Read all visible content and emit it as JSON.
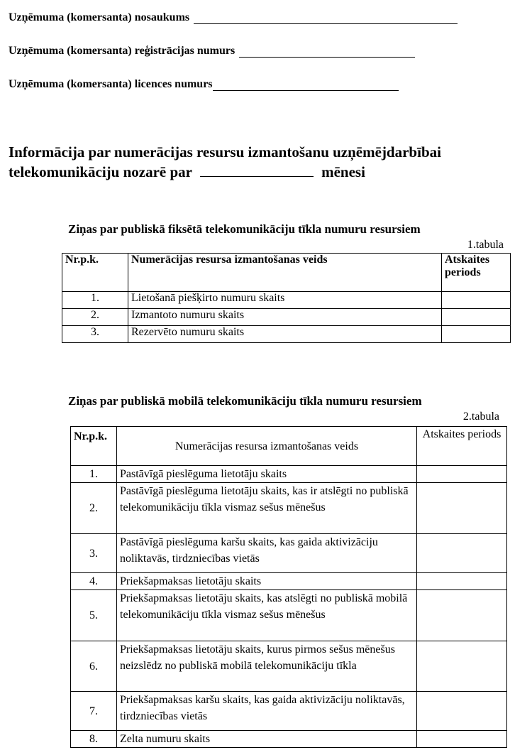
{
  "fields": [
    {
      "label": "Uzņēmuma (komersanta) nosaukums",
      "value": ""
    },
    {
      "label": "Uzņēmuma (komersanta) reģistrācijas numurs",
      "value": ""
    },
    {
      "label": "Uzņēmuma (komersanta) licences numurs",
      "value": ""
    }
  ],
  "heading": {
    "line1": "Informācija par numerācijas resursu izmantošanu uzņēmējdarbībai",
    "line2_before": "telekomunikāciju nozarē par",
    "month_value": "",
    "line2_after": "mēnesi"
  },
  "table1": {
    "title": "Ziņas par publiskā fiksētā telekomunikāciju tīkla  numuru resursiem",
    "number": "1.tabula",
    "headers": [
      "Nr.p.k.",
      "Numerācijas resursa izmantošanas veids",
      "Atskaites periods"
    ],
    "rows": [
      {
        "no": "1.",
        "type": "Lietošanā piešķirto numuru skaits",
        "value": ""
      },
      {
        "no": "2.",
        "type": "Izmantoto numuru skaits",
        "value": ""
      },
      {
        "no": "3.",
        "type": "Rezervēto numuru skaits",
        "value": ""
      }
    ]
  },
  "table2": {
    "title": "Ziņas par publiskā mobilā telekomunikāciju tīkla  numuru resursiem",
    "number": "2.tabula",
    "headers": [
      "Nr.p.k.",
      "Numerācijas resursa izmantošanas veids",
      "Atskaites periods"
    ],
    "rows": [
      {
        "no": "1.",
        "type": "Pastāvīgā pieslēguma lietotāju skaits",
        "value": ""
      },
      {
        "no": "2.",
        "type": "Pastāvīgā pieslēguma lietotāju skaits, kas ir atslēgti no publiskā telekomunikāciju tīkla vismaz sešus mēnešus",
        "value": ""
      },
      {
        "no": "3.",
        "type": "Pastāvīgā pieslēguma karšu skaits, kas gaida aktivizāciju noliktavās, tirdzniecības vietās",
        "value": ""
      },
      {
        "no": "4.",
        "type": "Priekšapmaksas lietotāju skaits",
        "value": ""
      },
      {
        "no": "5.",
        "type": "Priekšapmaksas lietotāju skaits, kas atslēgti no publiskā mobilā telekomunikāciju tīkla vismaz sešus mēnešus",
        "value": ""
      },
      {
        "no": "6.",
        "type": "Priekšapmaksas lietotāju skaits, kurus pirmos sešus mēnešus neizslēdz no publiskā mobilā telekomunikāciju tīkla",
        "value": ""
      },
      {
        "no": "7.",
        "type": "Priekšapmaksas karšu skaits, kas gaida aktivizāciju noliktavās, tirdzniecības vietās",
        "value": ""
      },
      {
        "no": "8.",
        "type": "Zelta numuru skaits",
        "value": ""
      }
    ]
  }
}
